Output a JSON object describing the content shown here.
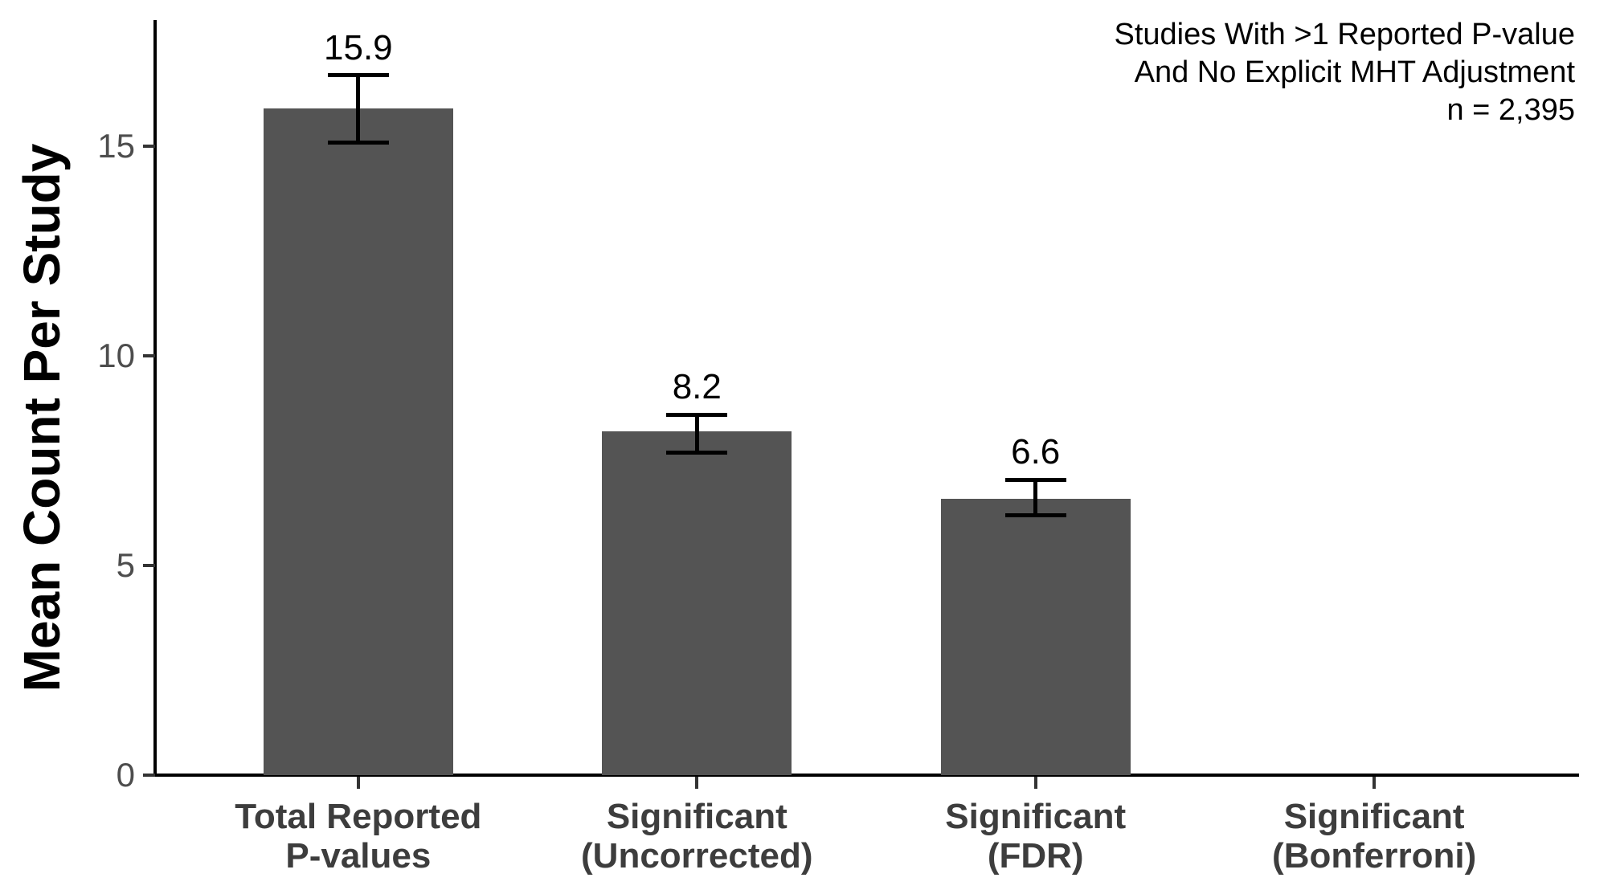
{
  "chart_data": {
    "type": "bar",
    "title": "",
    "categories": [
      "Total Reported\nP-values",
      "Significant\n(Uncorrected)",
      "Significant\n(FDR)",
      "Significant\n(Bonferroni)"
    ],
    "values": [
      15.9,
      8.2,
      6.6,
      0
    ],
    "value_labels": [
      "15.9",
      "8.2",
      "6.6",
      ""
    ],
    "error_low": [
      15.1,
      7.7,
      6.2,
      null
    ],
    "error_high": [
      16.7,
      8.6,
      7.05,
      null
    ],
    "ylabel": "Mean Count Per Study",
    "xlabel": "",
    "ylim": [
      0,
      18
    ],
    "yticks": [
      0,
      5,
      10,
      15
    ],
    "grid": false,
    "legend": false,
    "annotation": [
      "Studies With >1 Reported P-value",
      "And No Explicit MHT Adjustment",
      "n = 2,395"
    ],
    "bar_color": "#545454",
    "axis_color": "#000000",
    "tick_label_color": "#4d4d4d",
    "category_label_color": "#3d3d3d",
    "value_label_color": "#000000"
  }
}
